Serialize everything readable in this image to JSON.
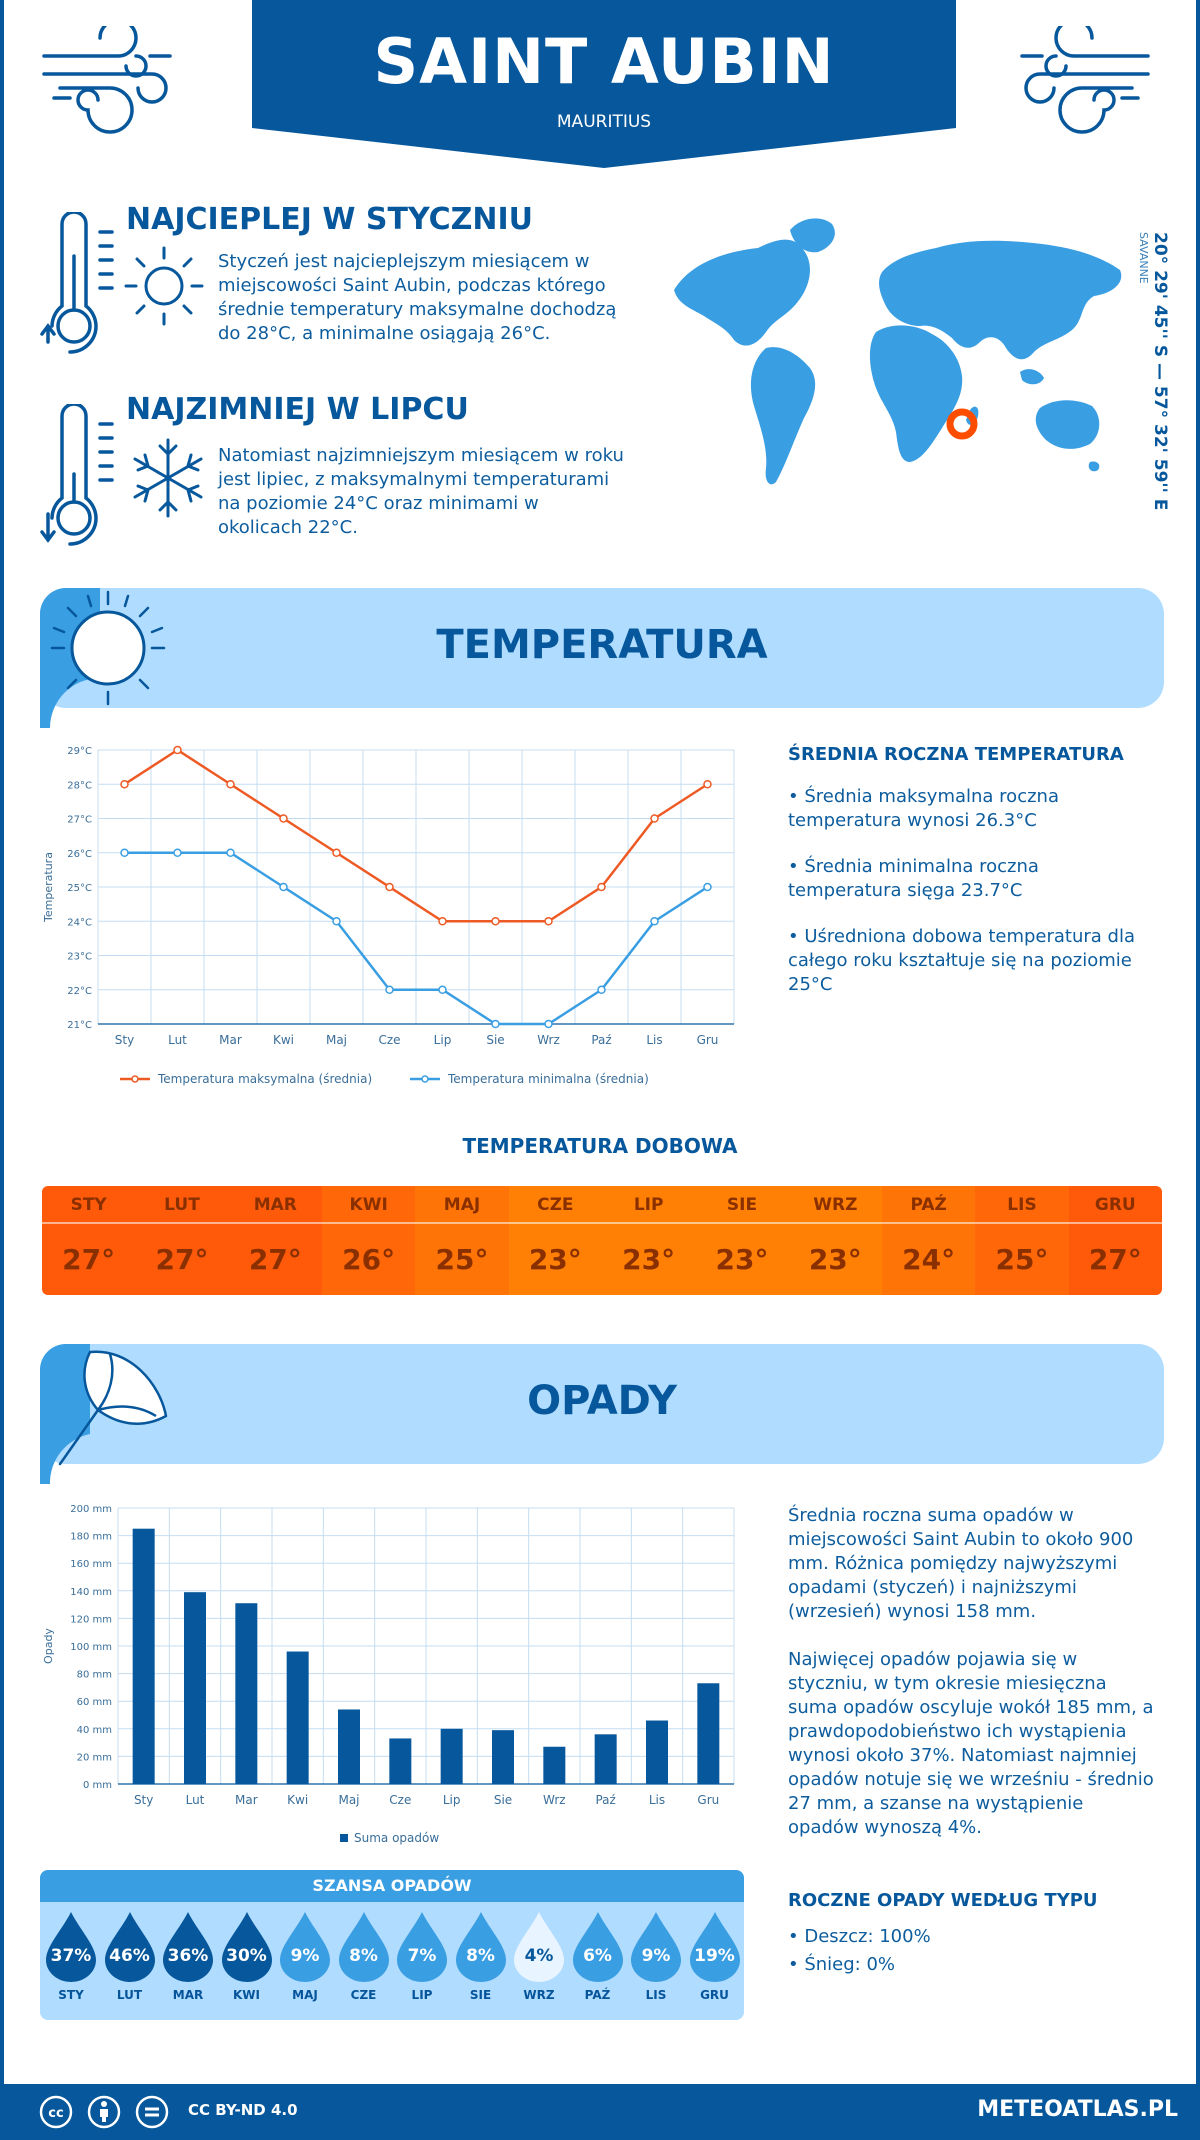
{
  "header": {
    "title": "SAINT AUBIN",
    "subtitle": "MAURITIUS"
  },
  "warmest": {
    "title": "NAJCIEPLEJ W STYCZNIU",
    "text": "Styczeń jest najcieplejszym miesiącem w miejscowości Saint Aubin, podczas którego średnie temperatury maksymalne dochodzą do 28°C, a minimalne osiągają 26°C."
  },
  "coldest": {
    "title": "NAJZIMNIEJ W LIPCU",
    "text": "Natomiast najzimniejszym miesiącem w roku jest lipiec, z maksymalnymi temperaturami na poziomie 24°C oraz minimami w okolicach 22°C."
  },
  "coords": {
    "value": "20° 29' 45'' S — 57° 32' 59'' E",
    "region": "SAVANNE"
  },
  "temp_section": {
    "title": "TEMPERATURA"
  },
  "temp_summary": {
    "title": "ŚREDNIA ROCZNA TEMPERATURA",
    "b1": "• Średnia maksymalna roczna temperatura wynosi 26.3°C",
    "b2": "• Średnia minimalna roczna temperatura sięga 23.7°C",
    "b3": "• Uśredniona dobowa temperatura dla całego roku kształtuje się na poziomie 25°C"
  },
  "daily": {
    "title": "TEMPERATURA DOBOWA",
    "months": [
      "STY",
      "LUT",
      "MAR",
      "KWI",
      "MAJ",
      "CZE",
      "LIP",
      "SIE",
      "WRZ",
      "PAŹ",
      "LIS",
      "GRU"
    ],
    "values": [
      "27°",
      "27°",
      "27°",
      "26°",
      "25°",
      "23°",
      "23°",
      "23°",
      "23°",
      "24°",
      "25°",
      "27°"
    ],
    "colors": [
      "#ff5a0a",
      "#ff5a0a",
      "#ff5a0a",
      "#ff6708",
      "#ff7406",
      "#ff8004",
      "#ff8004",
      "#ff8004",
      "#ff8004",
      "#ff7406",
      "#ff6708",
      "#ff5a0a"
    ]
  },
  "rain_section": {
    "title": "OPADY"
  },
  "rain_text": {
    "p1": "Średnia roczna suma opadów w miejscowości Saint Aubin to około 900 mm. Różnica pomiędzy najwyższymi opadami (styczeń) i najniższymi (wrzesień) wynosi 158 mm.",
    "p2": "Najwięcej opadów pojawia się w styczniu, w tym okresie miesięczna suma opadów oscyluje wokół 185 mm, a prawdopodobieństwo ich wystąpienia wynosi około 37%. Natomiast najmniej opadów notuje się we wrześniu - średnio 27 mm, a szanse na wystąpienie opadów wynoszą 4%."
  },
  "rain_type": {
    "title": "ROCZNE OPADY WEDŁUG TYPU",
    "rain": "• Deszcz: 100%",
    "snow": "• Śnieg: 0%"
  },
  "chance": {
    "title": "SZANSA OPADÓW",
    "months": [
      "STY",
      "LUT",
      "MAR",
      "KWI",
      "MAJ",
      "CZE",
      "LIP",
      "SIE",
      "WRZ",
      "PAŹ",
      "LIS",
      "GRU"
    ],
    "values": [
      "37%",
      "46%",
      "36%",
      "30%",
      "9%",
      "8%",
      "7%",
      "8%",
      "4%",
      "6%",
      "9%",
      "19%"
    ],
    "colors": [
      "#06579b",
      "#06579b",
      "#06579b",
      "#06579b",
      "#3a9ee3",
      "#3a9ee3",
      "#3a9ee3",
      "#3a9ee3",
      "#e8f4ff",
      "#3a9ee3",
      "#3a9ee3",
      "#3a9ee3"
    ]
  },
  "footer": {
    "license": "CC BY-ND 4.0",
    "site": "METEOATLAS.PL"
  },
  "chart_data": [
    {
      "type": "line",
      "categories": [
        "Sty",
        "Lut",
        "Mar",
        "Kwi",
        "Maj",
        "Cze",
        "Lip",
        "Sie",
        "Wrz",
        "Paź",
        "Lis",
        "Gru"
      ],
      "series": [
        {
          "name": "Temperatura maksymalna (średnia)",
          "values": [
            28,
            29,
            28,
            27,
            26,
            25,
            24,
            24,
            24,
            25,
            27,
            28
          ],
          "color": "#ee5a24"
        },
        {
          "name": "Temperatura minimalna (średnia)",
          "values": [
            26,
            26,
            26,
            25,
            24,
            22,
            22,
            21,
            21,
            22,
            24,
            25
          ],
          "color": "#3a9ee3"
        }
      ],
      "ylabel": "Temperatura",
      "ylim": [
        21,
        29
      ],
      "yticks": [
        "21°C",
        "22°C",
        "23°C",
        "24°C",
        "25°C",
        "26°C",
        "27°C",
        "28°C",
        "29°C"
      ],
      "grid": true,
      "legend": "bottom"
    },
    {
      "type": "bar",
      "categories": [
        "Sty",
        "Lut",
        "Mar",
        "Kwi",
        "Maj",
        "Cze",
        "Lip",
        "Sie",
        "Wrz",
        "Paź",
        "Lis",
        "Gru"
      ],
      "series": [
        {
          "name": "Suma opadów",
          "values": [
            185,
            139,
            131,
            96,
            54,
            33,
            40,
            39,
            27,
            36,
            46,
            73
          ],
          "color": "#06579b"
        }
      ],
      "ylabel": "Opady",
      "ylim": [
        0,
        200
      ],
      "yticks": [
        "0 mm",
        "20 mm",
        "40 mm",
        "60 mm",
        "80 mm",
        "100 mm",
        "120 mm",
        "140 mm",
        "160 mm",
        "180 mm",
        "200 mm"
      ],
      "grid": true,
      "legend": "bottom"
    }
  ]
}
